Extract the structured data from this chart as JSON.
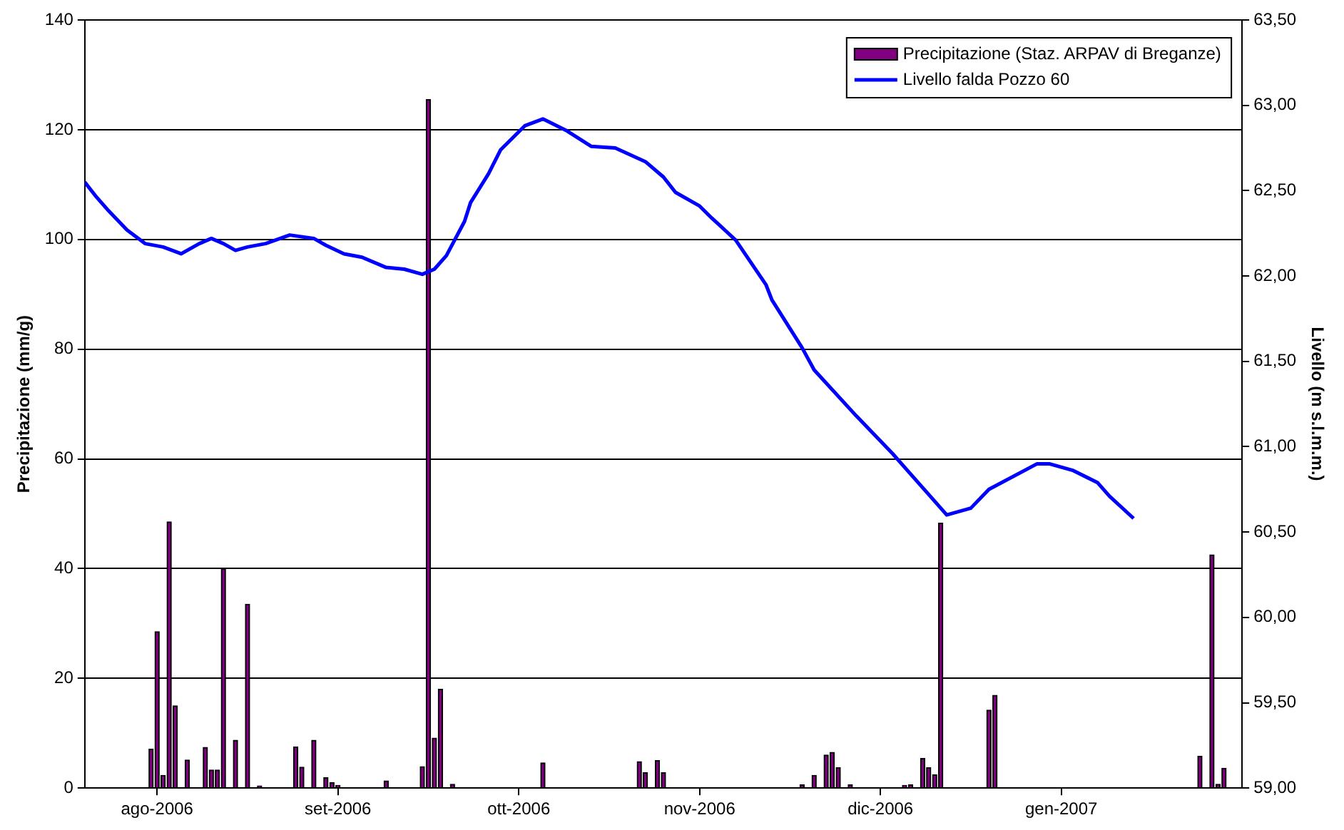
{
  "chart_data": {
    "type": "bar",
    "ylabel": "Precipitazione (mm/g)",
    "y2label": "Livello (m s.l.m.m.)",
    "xlim": [
      "2006-07-24",
      "2007-02-01"
    ],
    "xticks": [
      {
        "value": "2006-08-05",
        "label": "ago-2006"
      },
      {
        "value": "2006-09-04",
        "label": "set-2006"
      },
      {
        "value": "2006-10-04",
        "label": "ott-2006"
      },
      {
        "value": "2006-11-03",
        "label": "nov-2006"
      },
      {
        "value": "2006-12-03",
        "label": "dic-2006"
      },
      {
        "value": "2007-01-02",
        "label": "gen-2007"
      }
    ],
    "ylim": [
      0,
      140
    ],
    "yticks": [
      0,
      20,
      40,
      60,
      80,
      100,
      120,
      140
    ],
    "y2lim": [
      59,
      63.5
    ],
    "y2ticks": [
      {
        "value": 59,
        "label": "59,00"
      },
      {
        "value": 59.5,
        "label": "59,50"
      },
      {
        "value": 60,
        "label": "60,00"
      },
      {
        "value": 60.5,
        "label": "60,50"
      },
      {
        "value": 61,
        "label": "61,00"
      },
      {
        "value": 61.5,
        "label": "61,50"
      },
      {
        "value": 62,
        "label": "62,00"
      },
      {
        "value": 62.5,
        "label": "62,50"
      },
      {
        "value": 63,
        "label": "63,00"
      },
      {
        "value": 63.5,
        "label": "63,50"
      }
    ],
    "grid": "y",
    "legend": "top right",
    "marker": "none",
    "line_style": "solid",
    "series": [
      {
        "name": "Precipitazione (Staz. ARPAV di Breganze)",
        "color": "#800080",
        "x": [
          "2006-08-04",
          "2006-08-05",
          "2006-08-06",
          "2006-08-07",
          "2006-08-08",
          "2006-08-10",
          "2006-08-13",
          "2006-08-14",
          "2006-08-15",
          "2006-08-16",
          "2006-08-18",
          "2006-08-20",
          "2006-08-22",
          "2006-08-28",
          "2006-08-29",
          "2006-08-31",
          "2006-09-02",
          "2006-09-03",
          "2006-09-04",
          "2006-09-12",
          "2006-09-18",
          "2006-09-19",
          "2006-09-20",
          "2006-09-21",
          "2006-09-23",
          "2006-10-08",
          "2006-10-24",
          "2006-10-25",
          "2006-10-27",
          "2006-10-28",
          "2006-11-20",
          "2006-11-22",
          "2006-11-24",
          "2006-11-25",
          "2006-11-26",
          "2006-11-28",
          "2006-12-07",
          "2006-12-08",
          "2006-12-10",
          "2006-12-11",
          "2006-12-12",
          "2006-12-13",
          "2006-12-21",
          "2006-12-22",
          "2007-01-25",
          "2007-01-27",
          "2007-01-28",
          "2007-01-29"
        ],
        "values": [
          7.1,
          28.5,
          2.3,
          48.5,
          15.0,
          5.1,
          7.4,
          3.3,
          3.3,
          40.0,
          8.7,
          33.5,
          0.4,
          7.5,
          3.8,
          8.7,
          1.9,
          1.0,
          0.5,
          1.3,
          3.9,
          125.5,
          9.1,
          18.0,
          0.7,
          4.6,
          4.8,
          2.8,
          5.0,
          2.8,
          0.6,
          2.3,
          6.0,
          6.5,
          3.7,
          0.6,
          0.5,
          0.6,
          5.4,
          3.7,
          2.4,
          48.3,
          14.2,
          16.9,
          5.8,
          42.5,
          0.7,
          3.6
        ]
      },
      {
        "name": "Livello falda Pozzo 60",
        "type": "line",
        "axis": "y2",
        "color": "#0000ff",
        "x": [
          "2006-07-24",
          "2006-07-26",
          "2006-07-28",
          "2006-07-31",
          "2006-08-03",
          "2006-08-06",
          "2006-08-09",
          "2006-08-12",
          "2006-08-14",
          "2006-08-16",
          "2006-08-18",
          "2006-08-20",
          "2006-08-23",
          "2006-08-27",
          "2006-08-31",
          "2006-09-02",
          "2006-09-05",
          "2006-09-08",
          "2006-09-12",
          "2006-09-15",
          "2006-09-18",
          "2006-09-20",
          "2006-09-22",
          "2006-09-25",
          "2006-09-26",
          "2006-09-29",
          "2006-10-01",
          "2006-10-05",
          "2006-10-08",
          "2006-10-12",
          "2006-10-16",
          "2006-10-20",
          "2006-10-25",
          "2006-10-28",
          "2006-10-30",
          "2006-11-03",
          "2006-11-05",
          "2006-11-09",
          "2006-11-14",
          "2006-11-15",
          "2006-11-20",
          "2006-11-22",
          "2006-11-29",
          "2006-12-05",
          "2006-12-11",
          "2006-12-14",
          "2006-12-18",
          "2006-12-21",
          "2006-12-29",
          "2006-12-31",
          "2007-01-04",
          "2007-01-08",
          "2007-01-10",
          "2007-01-14"
        ],
        "values": [
          62.55,
          62.46,
          62.38,
          62.27,
          62.19,
          62.17,
          62.13,
          62.19,
          62.22,
          62.19,
          62.15,
          62.17,
          62.19,
          62.24,
          62.22,
          62.18,
          62.13,
          62.11,
          62.05,
          62.04,
          62.01,
          62.04,
          62.12,
          62.32,
          62.43,
          62.6,
          62.74,
          62.88,
          62.92,
          62.85,
          62.76,
          62.75,
          62.67,
          62.58,
          62.49,
          62.41,
          62.34,
          62.21,
          61.95,
          61.86,
          61.58,
          61.45,
          61.18,
          60.96,
          60.72,
          60.6,
          60.64,
          60.75,
          60.9,
          60.9,
          60.86,
          60.79,
          60.71,
          60.58
        ]
      }
    ]
  }
}
